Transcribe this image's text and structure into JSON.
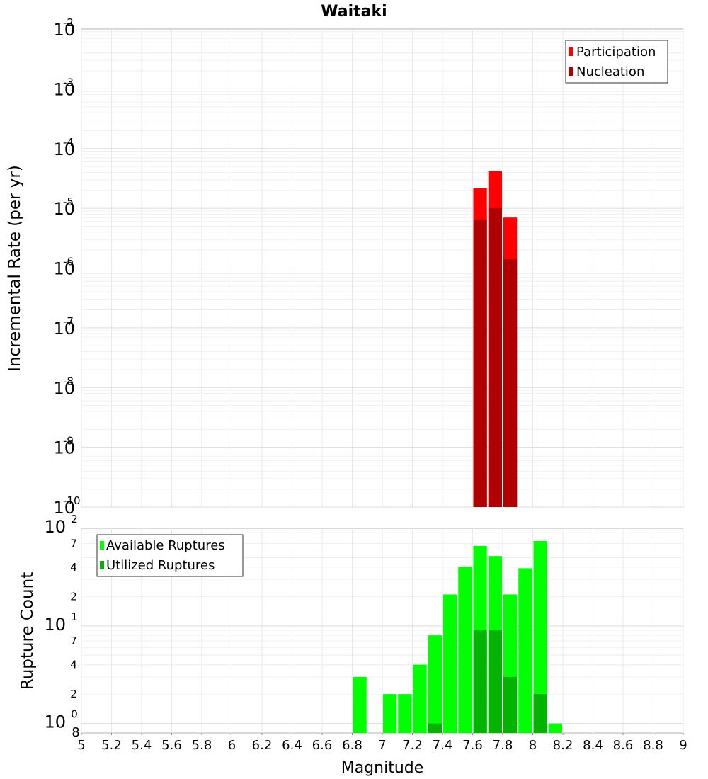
{
  "chart_data": [
    {
      "type": "bar",
      "title": "Waitaki",
      "xlabel": "",
      "ylabel": "Incremental Rate (per yr)",
      "yscale": "log",
      "ylim": [
        1e-10,
        0.01
      ],
      "xlim": [
        5,
        9
      ],
      "bin_width": 0.1,
      "y_tick_exponents": [
        "-10",
        "-9",
        "-8",
        "-7",
        "-6",
        "-5",
        "-4",
        "-3",
        "-2"
      ],
      "y_tick_base": "10",
      "legend": {
        "position": "top-right",
        "entries": [
          "Participation",
          "Nucleation"
        ]
      },
      "colors": {
        "Participation": "#ff0000",
        "Nucleation": "#b00000"
      },
      "series": [
        {
          "name": "Participation",
          "x": [
            7.65,
            7.75,
            7.85
          ],
          "values": [
            2.2e-05,
            4.2e-05,
            7e-06
          ]
        },
        {
          "name": "Nucleation",
          "x": [
            7.65,
            7.75,
            7.85
          ],
          "values": [
            6.5e-06,
            1e-05,
            1.4e-06
          ]
        }
      ]
    },
    {
      "type": "bar",
      "title": "",
      "xlabel": "Magnitude",
      "ylabel": "Rupture Count",
      "yscale": "log",
      "ylim": [
        0.8,
        100
      ],
      "xlim": [
        5,
        9
      ],
      "bin_width": 0.1,
      "x_tick_labels": [
        "5",
        "5.2",
        "5.4",
        "5.6",
        "5.8",
        "6",
        "6.2",
        "6.4",
        "6.6",
        "6.8",
        "7",
        "7.2",
        "7.4",
        "7.6",
        "7.8",
        "8",
        "8.2",
        "8.4",
        "8.6",
        "8.8",
        "9"
      ],
      "y_tick_base": "10",
      "y_major_exponents": [
        "0",
        "1",
        "2"
      ],
      "y_minor_labels": [
        "8",
        "2",
        "4",
        "7",
        "2",
        "4",
        "7"
      ],
      "legend": {
        "position": "top-left",
        "entries": [
          "Available Ruptures",
          "Utilized Ruptures"
        ]
      },
      "colors": {
        "Available Ruptures": "#00ff00",
        "Utilized Ruptures": "#00b400"
      },
      "series": [
        {
          "name": "Available Ruptures",
          "x": [
            6.85,
            7.05,
            7.15,
            7.25,
            7.35,
            7.45,
            7.55,
            7.65,
            7.75,
            7.85,
            7.95,
            8.05,
            8.15
          ],
          "values": [
            3,
            2,
            2,
            4,
            8,
            21,
            40,
            66,
            52,
            21,
            39,
            74,
            1
          ]
        },
        {
          "name": "Utilized Ruptures",
          "x": [
            7.35,
            7.65,
            7.75,
            7.85,
            8.05
          ],
          "values": [
            1,
            9,
            9,
            3,
            2
          ]
        }
      ]
    }
  ]
}
